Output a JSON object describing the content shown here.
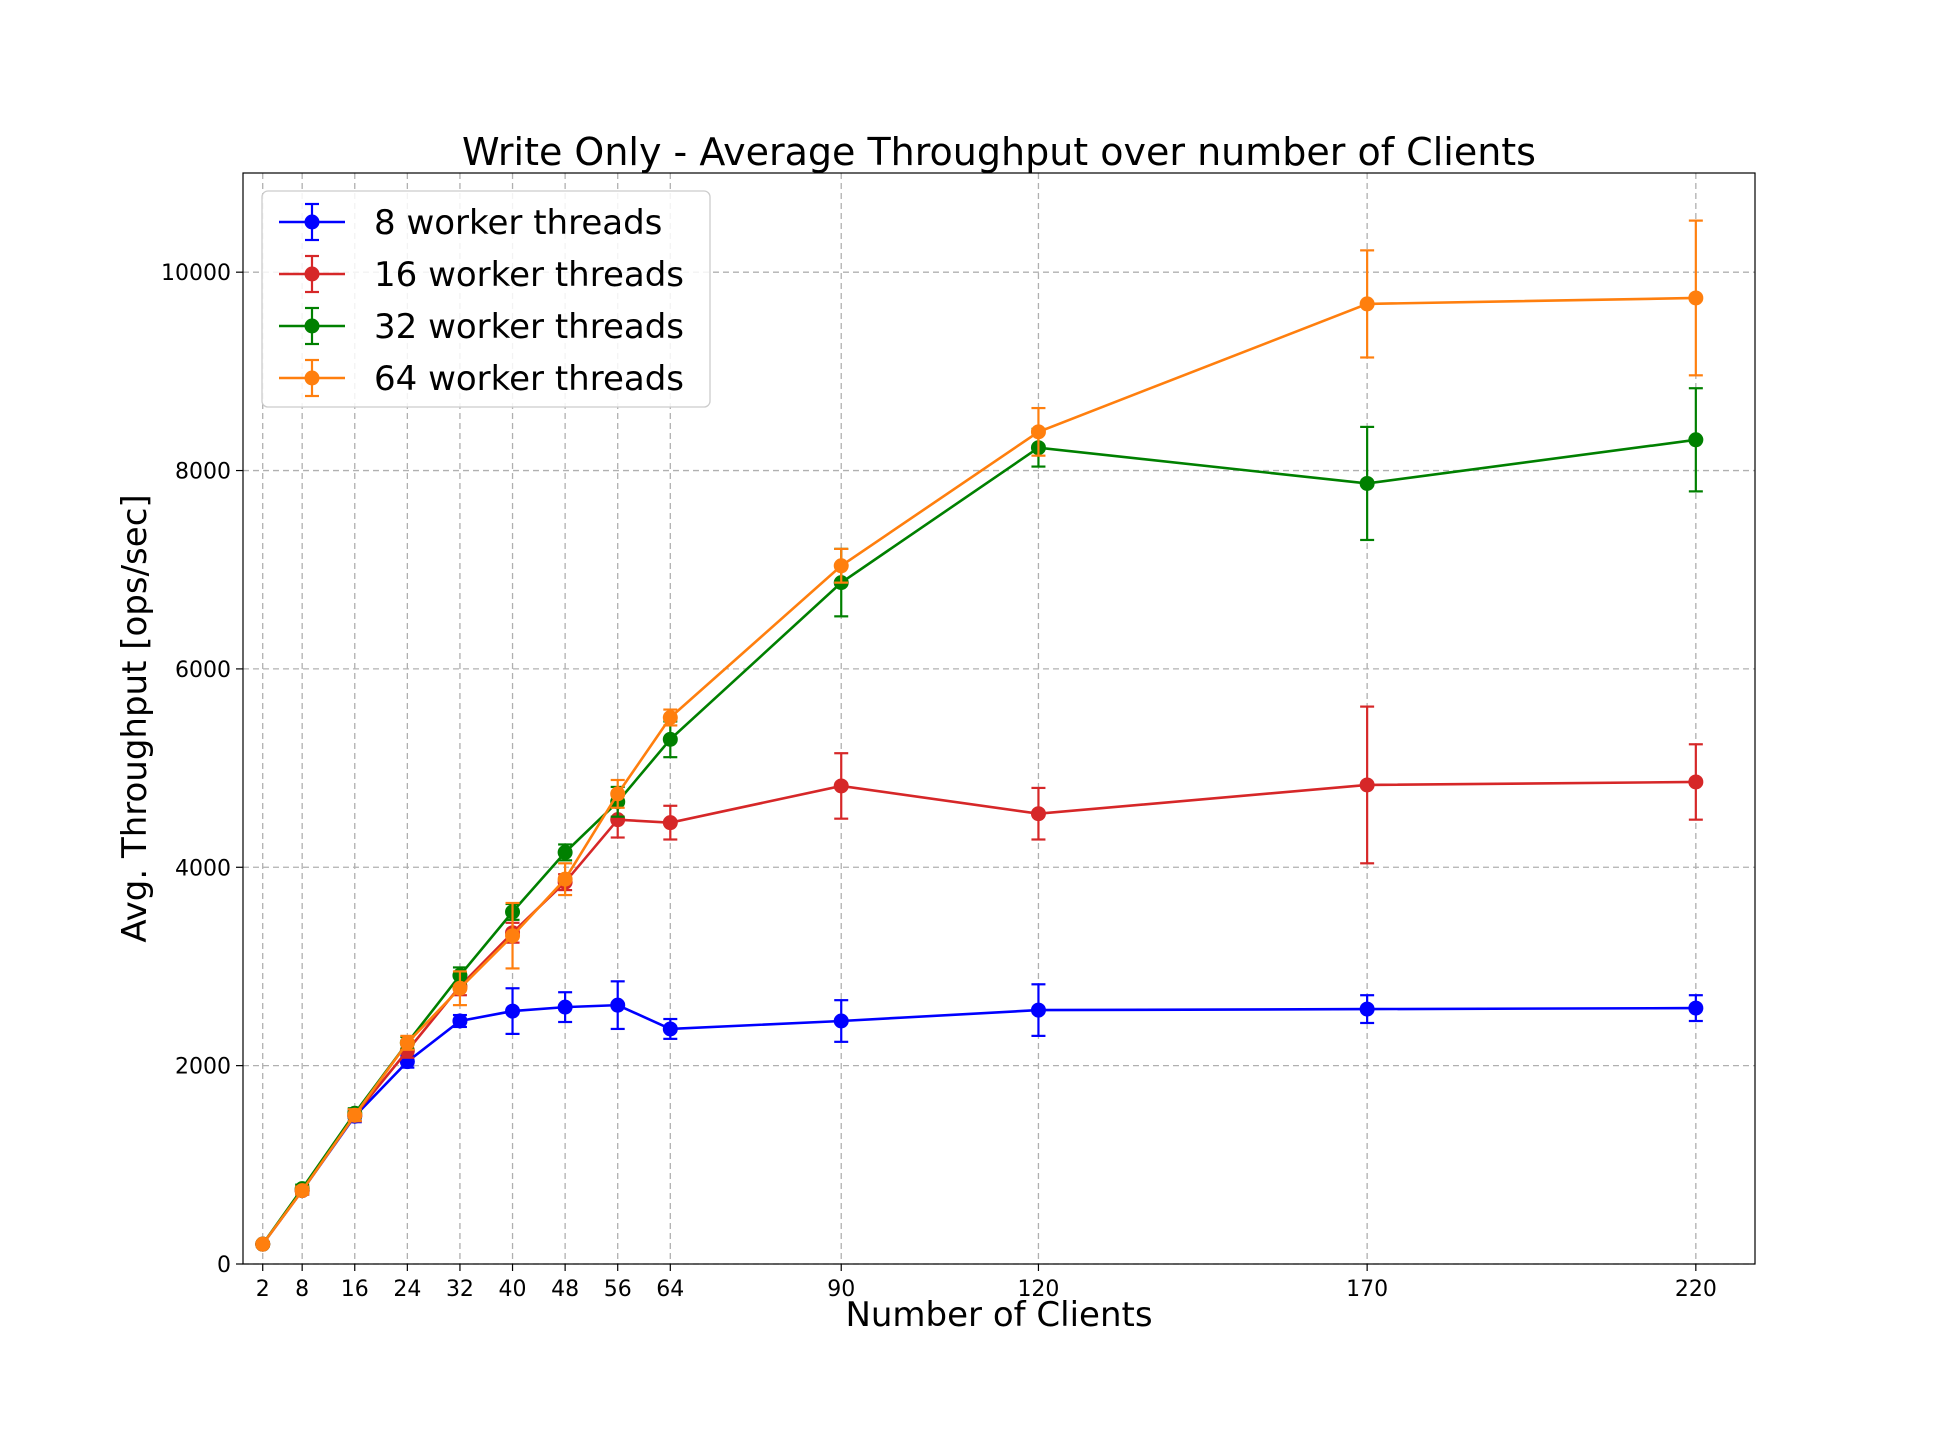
{
  "chart_data": {
    "type": "line",
    "title": "Write Only - Average Throughput over number of Clients",
    "xlabel": "Number of Clients",
    "ylabel": "Avg. Throughput [ops/sec]",
    "x": [
      2,
      8,
      16,
      24,
      32,
      40,
      48,
      56,
      64,
      90,
      120,
      170,
      220
    ],
    "x_ticks": [
      2,
      8,
      16,
      24,
      32,
      40,
      48,
      56,
      64,
      90,
      120,
      170,
      220
    ],
    "xlim": [
      -1,
      229
    ],
    "y_ticks": [
      0,
      2000,
      4000,
      6000,
      8000,
      10000
    ],
    "ylim": [
      0,
      11000
    ],
    "grid": true,
    "legend_position": "top-left",
    "series": [
      {
        "name": "8 worker threads",
        "color": "#0000ff",
        "values": [
          200,
          740,
          1490,
          2040,
          2450,
          2550,
          2590,
          2610,
          2370,
          2450,
          2560,
          2570,
          2580
        ],
        "errors": [
          20,
          40,
          60,
          60,
          60,
          230,
          150,
          240,
          100,
          210,
          260,
          140,
          130
        ]
      },
      {
        "name": "16 worker threads",
        "color": "#d62728",
        "values": [
          200,
          740,
          1500,
          2150,
          2800,
          3340,
          3850,
          4480,
          4450,
          4820,
          4540,
          4830,
          4860
        ],
        "errors": [
          20,
          40,
          60,
          70,
          90,
          100,
          80,
          180,
          170,
          330,
          260,
          790,
          380
        ]
      },
      {
        "name": "32 worker threads",
        "color": "#008000",
        "values": [
          200,
          760,
          1520,
          2230,
          2910,
          3550,
          4150,
          4660,
          5290,
          6870,
          8230,
          7870,
          8310
        ],
        "errors": [
          20,
          40,
          50,
          60,
          80,
          80,
          80,
          150,
          180,
          340,
          190,
          570,
          520
        ]
      },
      {
        "name": "64 worker threads",
        "color": "#ff7f0e",
        "values": [
          200,
          740,
          1500,
          2230,
          2780,
          3310,
          3880,
          4740,
          5510,
          7040,
          8390,
          9680,
          9740
        ],
        "errors": [
          20,
          40,
          60,
          70,
          170,
          330,
          160,
          140,
          80,
          170,
          240,
          540,
          780
        ]
      }
    ]
  }
}
